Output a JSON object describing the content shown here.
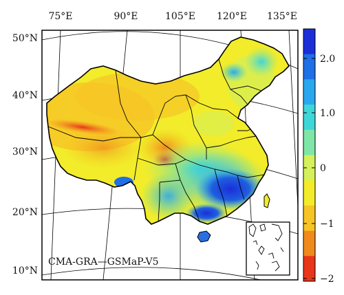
{
  "map": {
    "caption": "CMA-GRA—GSMaP-V5",
    "top_longitude_labels": [
      "75°E",
      "90°E",
      "105°E",
      "120°E",
      "135°E"
    ],
    "left_latitude_labels": [
      "50°N",
      "40°N",
      "30°N",
      "20°N",
      "10°N"
    ],
    "colors": {
      "frame": "#000000",
      "border": "#000000",
      "graticule": "#000000"
    }
  },
  "colorbar": {
    "ticks": [
      "2.0",
      "1.0",
      "0",
      "−1",
      "−2"
    ],
    "stops": [
      "#1b2fd8",
      "#1f6fe6",
      "#2aa8ef",
      "#3fd6d8",
      "#7fe6a8",
      "#d4f05a",
      "#f2ec2a",
      "#f6c425",
      "#f08a1d",
      "#e8361a"
    ]
  }
}
